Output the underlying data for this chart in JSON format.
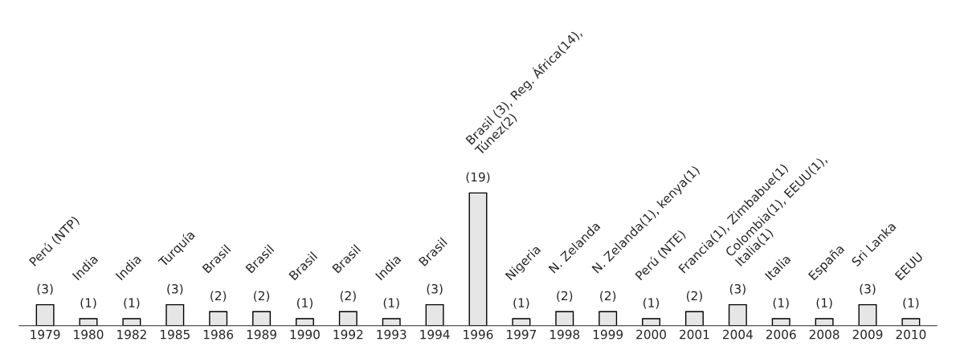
{
  "chart_data": {
    "type": "bar",
    "categories": [
      "1979",
      "1980",
      "1982",
      "1985",
      "1986",
      "1989",
      "1990",
      "1992",
      "1993",
      "1994",
      "1996",
      "1997",
      "1998",
      "1999",
      "2000",
      "2001",
      "2004",
      "2006",
      "2008",
      "2009",
      "2010"
    ],
    "values": [
      3,
      1,
      1,
      3,
      2,
      2,
      1,
      2,
      1,
      3,
      19,
      1,
      2,
      2,
      1,
      2,
      3,
      1,
      1,
      3,
      1
    ],
    "value_labels": [
      "(3)",
      "(1)",
      "(1)",
      "(3)",
      "(2)",
      "(2)",
      "(1)",
      "(2)",
      "(1)",
      "(3)",
      "(19)",
      "(1)",
      "(2)",
      "(2)",
      "(1)",
      "(2)",
      "(3)",
      "(1)",
      "(1)",
      "(3)",
      "(1)"
    ],
    "color": "#e6e6e6",
    "annotations": [
      "Perú (NTP)",
      "India",
      "India",
      "Turquía",
      "Brasil",
      "Brasil",
      "Brasil",
      "Brasil",
      "India",
      "Brasil",
      "Brasil (3), Reg. África(14),\nTúnez(2)",
      "Nigeria",
      "N. Zelanda",
      "N. Zelanda(1), kenya(1)",
      "Perú (NTE)",
      "Francia(1), Zimbabue(1)",
      "Colombia(1), EEUU(1),\nItalia(1)",
      "Italia",
      "España",
      "Sri Lanka",
      "EEUU"
    ]
  }
}
